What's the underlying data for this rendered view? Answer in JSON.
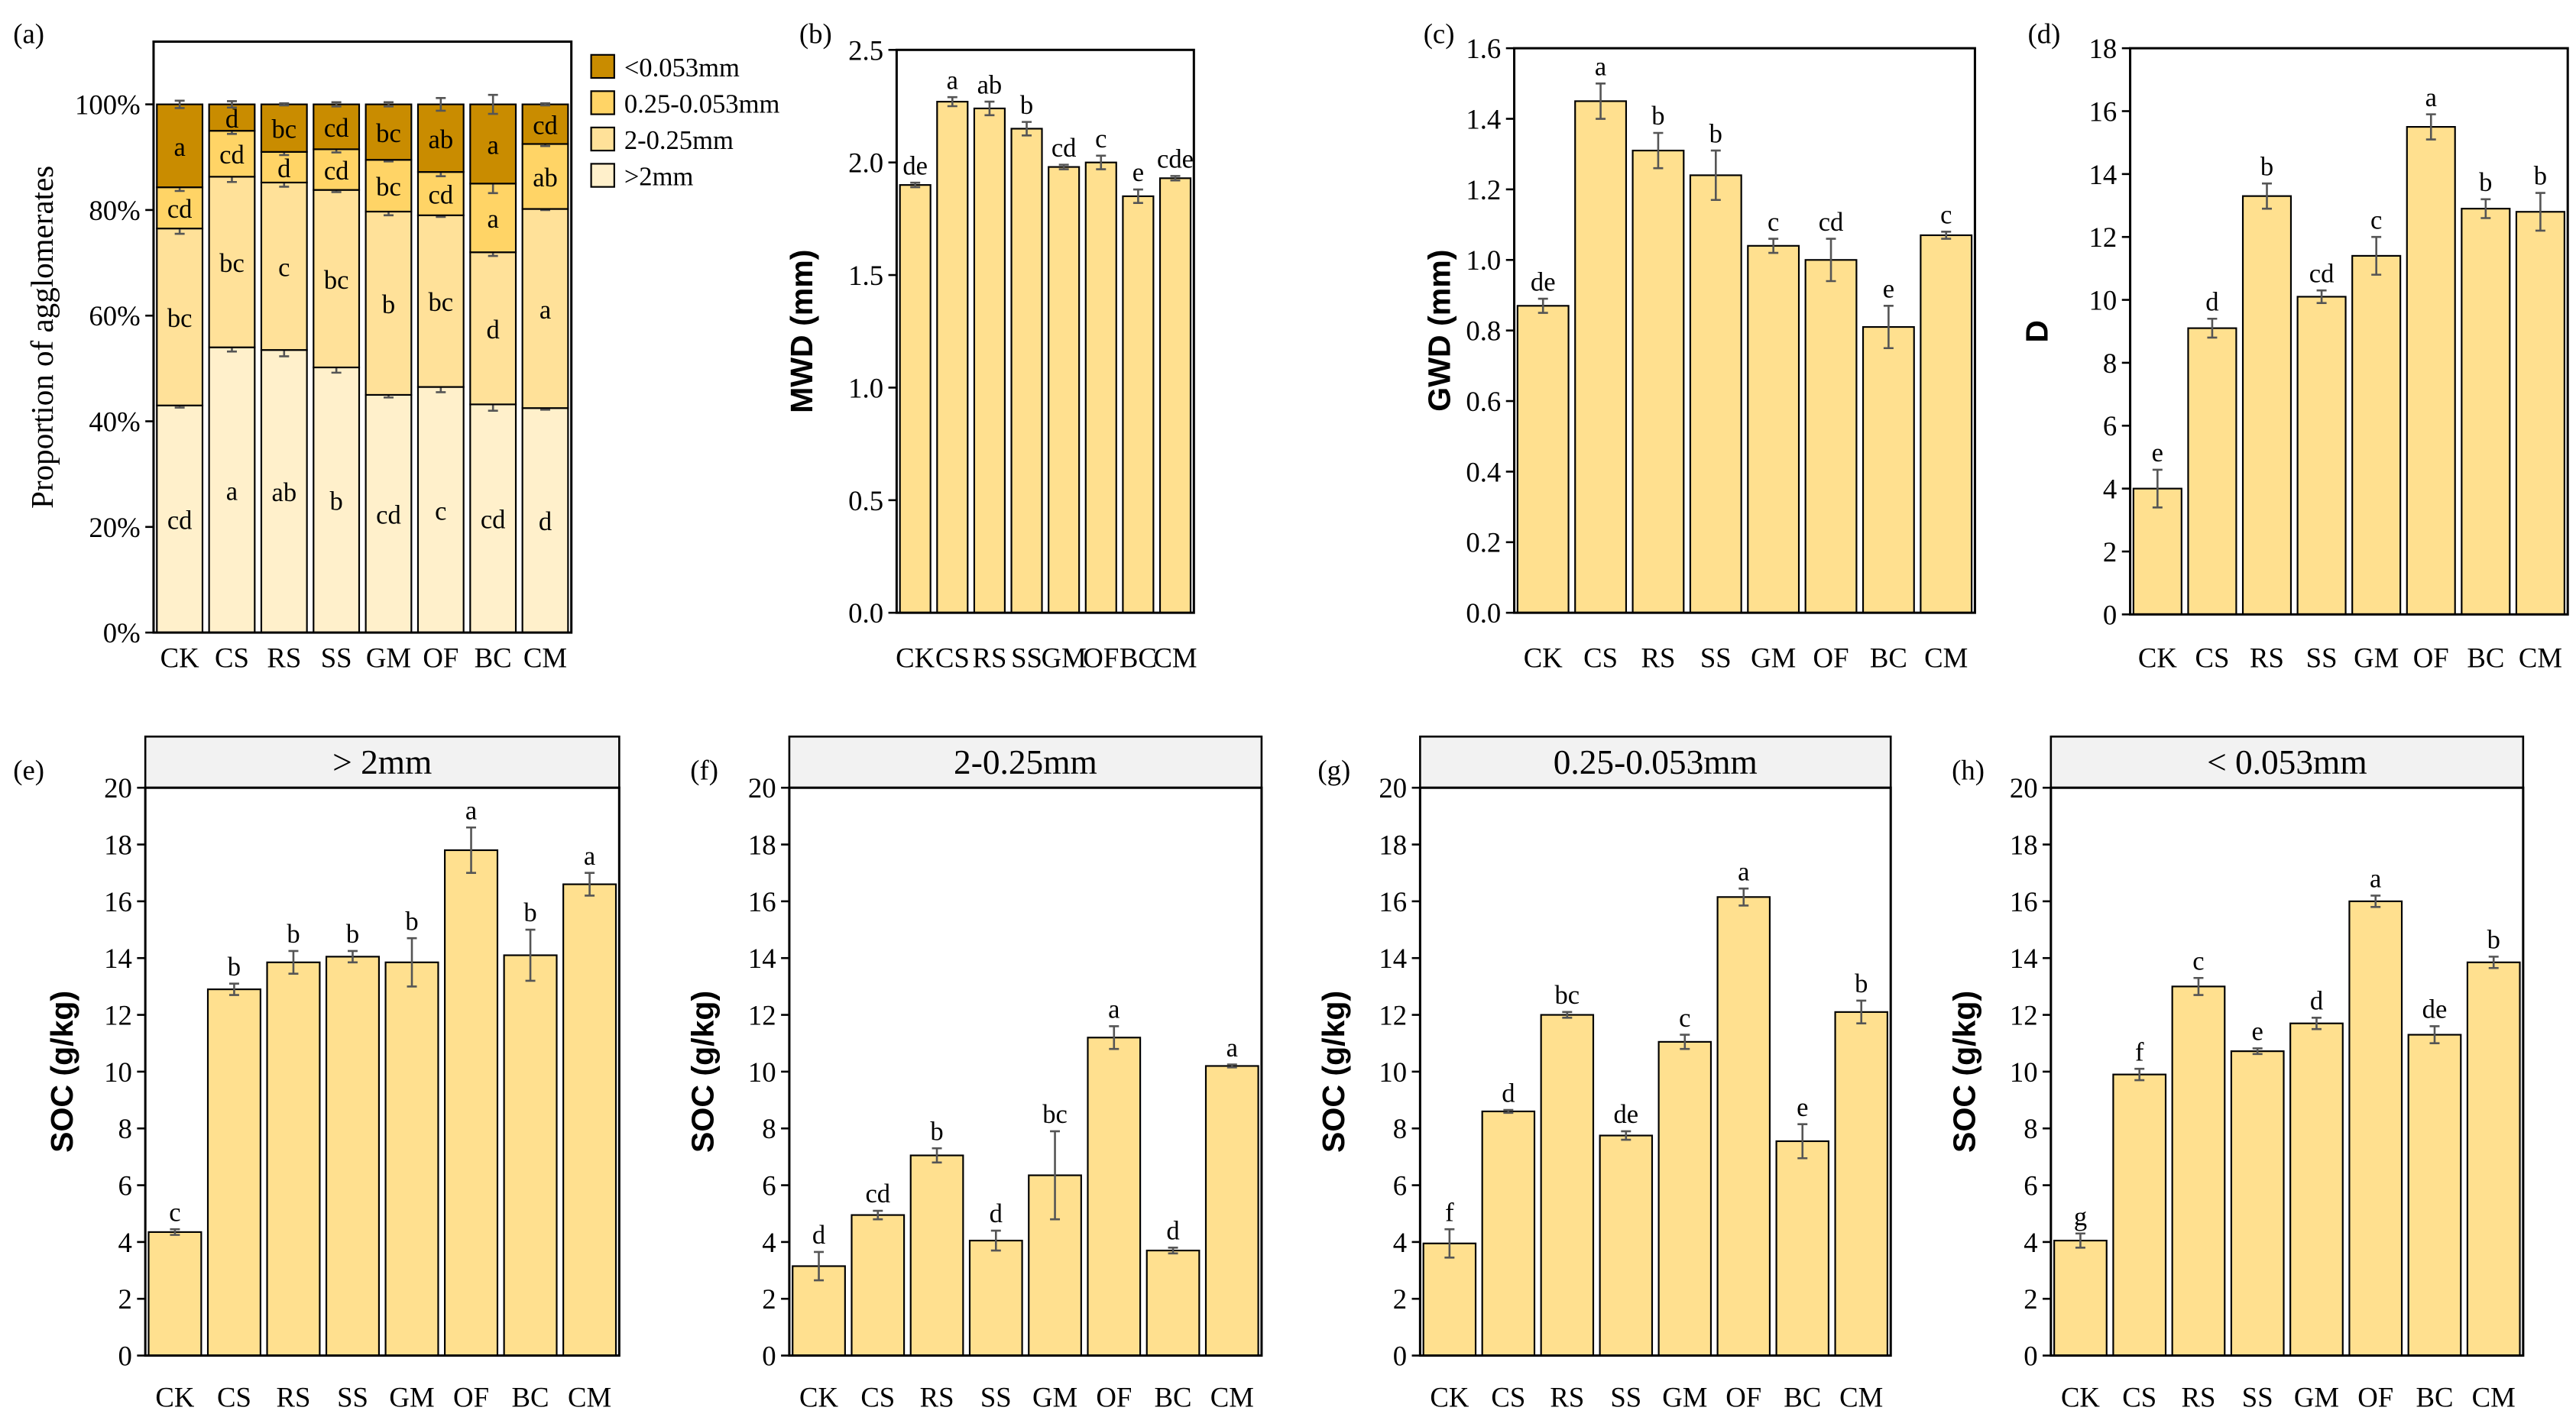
{
  "chart_data": [
    {
      "panel": "(a)",
      "type": "bar",
      "stacked": true,
      "categories": [
        "CK",
        "CS",
        "RS",
        "SS",
        "GM",
        "OF",
        "BC",
        "CM"
      ],
      "ylabel": "Proportion of agglomerates",
      "ylim": [
        0,
        100
      ],
      "yticks": [
        0,
        20,
        40,
        60,
        80,
        100
      ],
      "ytick_suffix": "%",
      "legend_position": "right",
      "series": [
        {
          "name": ">2mm",
          "color": "#FFF0CB",
          "values": [
            43.0,
            54.0,
            53.5,
            50.2,
            45.0,
            46.5,
            43.2,
            42.5
          ],
          "err": [
            0.4,
            0.8,
            1.2,
            1.0,
            0.5,
            1.0,
            1.2,
            0.3
          ],
          "letters": [
            "cd",
            "a",
            "ab",
            "b",
            "cd",
            "c",
            "cd",
            "d"
          ]
        },
        {
          "name": "2-0.25mm",
          "color": "#FFE199",
          "values": [
            33.5,
            32.3,
            31.7,
            33.6,
            34.7,
            32.5,
            28.8,
            37.7
          ],
          "err": [
            1.0,
            1.0,
            0.8,
            0.4,
            0.7,
            0.3,
            0.7,
            0.2
          ],
          "letters": [
            "bc",
            "bc",
            "c",
            "bc",
            "b",
            "bc",
            "d",
            "a"
          ]
        },
        {
          "name": "0.25-0.053mm",
          "color": "#FFD466",
          "values": [
            7.8,
            8.7,
            5.8,
            7.7,
            9.8,
            8.2,
            13.0,
            12.3
          ],
          "err": [
            0.7,
            0.6,
            0.6,
            0.6,
            0.3,
            0.8,
            1.8,
            0.4
          ],
          "letters": [
            "cd",
            "cd",
            "d",
            "cd",
            "bc",
            "cd",
            "a",
            "ab"
          ]
        },
        {
          "name": "<0.053mm",
          "color": "#C98C00",
          "values": [
            15.7,
            5.0,
            9.0,
            8.5,
            10.5,
            12.8,
            15.0,
            7.5
          ],
          "err": [
            0.7,
            0.6,
            0.2,
            0.4,
            0.4,
            1.2,
            1.8,
            0.2
          ],
          "letters": [
            "a",
            "d",
            "bc",
            "cd",
            "bc",
            "ab",
            "a",
            "cd"
          ]
        }
      ],
      "legend_labels": [
        "<0.053mm",
        "0.25-0.053mm",
        "2-0.25mm",
        ">2mm"
      ]
    },
    {
      "panel": "(b)",
      "type": "bar",
      "categories": [
        "CK",
        "CS",
        "RS",
        "SS",
        "GM",
        "OF",
        "BC",
        "CM"
      ],
      "ylabel": "MWD (mm)",
      "ylim": [
        0,
        2.5
      ],
      "yticks": [
        0.0,
        0.5,
        1.0,
        1.5,
        2.0,
        2.5
      ],
      "tick_decimals": 1,
      "values": [
        1.9,
        2.27,
        2.24,
        2.15,
        1.98,
        2.0,
        1.85,
        1.93
      ],
      "err": [
        0.01,
        0.02,
        0.03,
        0.03,
        0.01,
        0.03,
        0.03,
        0.01
      ],
      "letters": [
        "de",
        "a",
        "ab",
        "b",
        "cd",
        "c",
        "e",
        "cde"
      ]
    },
    {
      "panel": "(c)",
      "type": "bar",
      "categories": [
        "CK",
        "CS",
        "RS",
        "SS",
        "GM",
        "OF",
        "BC",
        "CM"
      ],
      "ylabel": "GWD (mm)",
      "ylim": [
        0,
        1.6
      ],
      "yticks": [
        0.0,
        0.2,
        0.4,
        0.6,
        0.8,
        1.0,
        1.2,
        1.4,
        1.6
      ],
      "tick_decimals": 1,
      "values": [
        0.87,
        1.45,
        1.31,
        1.24,
        1.04,
        1.0,
        0.81,
        1.07
      ],
      "err": [
        0.02,
        0.05,
        0.05,
        0.07,
        0.02,
        0.06,
        0.06,
        0.01
      ],
      "letters": [
        "de",
        "a",
        "b",
        "b",
        "c",
        "cd",
        "e",
        "c"
      ]
    },
    {
      "panel": "(d)",
      "type": "bar",
      "categories": [
        "CK",
        "CS",
        "RS",
        "SS",
        "GM",
        "OF",
        "BC",
        "CM"
      ],
      "ylabel": "D",
      "ylim": [
        0,
        18
      ],
      "yticks": [
        0,
        2,
        4,
        6,
        8,
        10,
        12,
        14,
        16,
        18
      ],
      "tick_decimals": 0,
      "values": [
        4.0,
        9.1,
        13.3,
        10.1,
        11.4,
        15.5,
        12.9,
        12.8
      ],
      "err": [
        0.6,
        0.3,
        0.4,
        0.2,
        0.6,
        0.4,
        0.3,
        0.6
      ],
      "letters": [
        "e",
        "d",
        "b",
        "cd",
        "c",
        "a",
        "b",
        "b"
      ]
    },
    {
      "panel": "(e)",
      "type": "bar",
      "strip_title": "> 2mm",
      "categories": [
        "CK",
        "CS",
        "RS",
        "SS",
        "GM",
        "OF",
        "BC",
        "CM"
      ],
      "ylabel": "SOC (g/kg)",
      "ylim": [
        0,
        20
      ],
      "yticks": [
        0,
        2,
        4,
        6,
        8,
        10,
        12,
        14,
        16,
        18,
        20
      ],
      "tick_decimals": 0,
      "values": [
        4.35,
        12.9,
        13.85,
        14.05,
        13.85,
        17.8,
        14.1,
        16.6
      ],
      "err": [
        0.1,
        0.2,
        0.4,
        0.2,
        0.85,
        0.8,
        0.9,
        0.4
      ],
      "letters": [
        "c",
        "b",
        "b",
        "b",
        "b",
        "a",
        "b",
        "a"
      ]
    },
    {
      "panel": "(f)",
      "type": "bar",
      "strip_title": "2-0.25mm",
      "categories": [
        "CK",
        "CS",
        "RS",
        "SS",
        "GM",
        "OF",
        "BC",
        "CM"
      ],
      "ylabel": "SOC (g/kg)",
      "ylim": [
        0,
        20
      ],
      "yticks": [
        0,
        2,
        4,
        6,
        8,
        10,
        12,
        14,
        16,
        18,
        20
      ],
      "tick_decimals": 0,
      "values": [
        3.15,
        4.95,
        7.05,
        4.05,
        6.35,
        11.2,
        3.7,
        10.2
      ],
      "err": [
        0.5,
        0.15,
        0.25,
        0.35,
        1.55,
        0.4,
        0.1,
        0.05
      ],
      "letters": [
        "d",
        "cd",
        "b",
        "d",
        "bc",
        "a",
        "d",
        "a"
      ]
    },
    {
      "panel": "(g)",
      "type": "bar",
      "strip_title": "0.25-0.053mm",
      "categories": [
        "CK",
        "CS",
        "RS",
        "SS",
        "GM",
        "OF",
        "BC",
        "CM"
      ],
      "ylabel": "SOC (g/kg)",
      "ylim": [
        0,
        20
      ],
      "yticks": [
        0,
        2,
        4,
        6,
        8,
        10,
        12,
        14,
        16,
        18,
        20
      ],
      "tick_decimals": 0,
      "values": [
        3.95,
        8.6,
        12.0,
        7.75,
        11.05,
        16.15,
        7.55,
        12.1
      ],
      "err": [
        0.5,
        0.05,
        0.1,
        0.15,
        0.25,
        0.3,
        0.6,
        0.4
      ],
      "letters": [
        "f",
        "d",
        "bc",
        "de",
        "c",
        "a",
        "e",
        "b"
      ]
    },
    {
      "panel": "(h)",
      "type": "bar",
      "strip_title": "< 0.053mm",
      "categories": [
        "CK",
        "CS",
        "RS",
        "SS",
        "GM",
        "OF",
        "BC",
        "CM"
      ],
      "ylabel": "SOC (g/kg)",
      "ylim": [
        0,
        20
      ],
      "yticks": [
        0,
        2,
        4,
        6,
        8,
        10,
        12,
        14,
        16,
        18,
        20
      ],
      "tick_decimals": 0,
      "values": [
        4.05,
        9.9,
        13.0,
        10.72,
        11.7,
        16.0,
        11.3,
        13.85
      ],
      "err": [
        0.25,
        0.2,
        0.3,
        0.1,
        0.2,
        0.2,
        0.3,
        0.2
      ],
      "letters": [
        "g",
        "f",
        "c",
        "e",
        "d",
        "a",
        "de",
        "b"
      ]
    }
  ],
  "colors": {
    "bar": "#FFE08F",
    "strip": "#F2F2F2",
    "error": "#555555"
  }
}
